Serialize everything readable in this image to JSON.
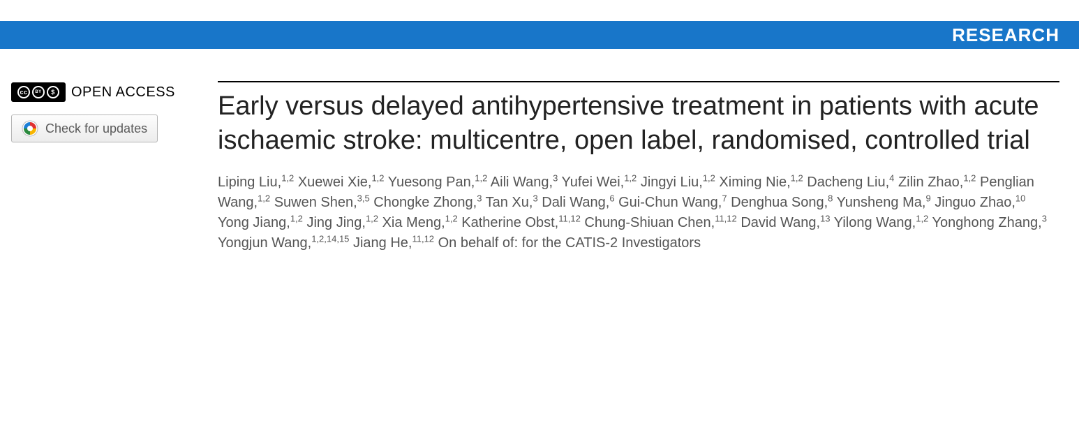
{
  "banner": {
    "label": "RESEARCH",
    "bg_color": "#1876c9",
    "text_color": "#ffffff"
  },
  "badges": {
    "open_access_label": "OPEN ACCESS",
    "check_updates_label": "Check for updates",
    "cc_glyph1": "cc",
    "cc_glyph2": "BY",
    "cc_glyph3": "$"
  },
  "article": {
    "title": "Early versus delayed antihypertensive treatment in patients with acute ischaemic stroke: multicentre, open label, randomised, controlled trial",
    "title_color": "#222222",
    "authors_color": "#555555",
    "authors": [
      {
        "name": "Liping Liu",
        "aff": "1,2"
      },
      {
        "name": "Xuewei Xie",
        "aff": "1,2"
      },
      {
        "name": "Yuesong Pan",
        "aff": "1,2"
      },
      {
        "name": "Aili Wang",
        "aff": "3"
      },
      {
        "name": "Yufei Wei",
        "aff": "1,2"
      },
      {
        "name": "Jingyi Liu",
        "aff": "1,2"
      },
      {
        "name": "Ximing Nie",
        "aff": "1,2"
      },
      {
        "name": "Dacheng Liu",
        "aff": "4"
      },
      {
        "name": "Zilin Zhao",
        "aff": "1,2"
      },
      {
        "name": "Penglian Wang",
        "aff": "1,2"
      },
      {
        "name": "Suwen Shen",
        "aff": "3,5"
      },
      {
        "name": "Chongke Zhong",
        "aff": "3"
      },
      {
        "name": "Tan Xu",
        "aff": "3"
      },
      {
        "name": "Dali Wang",
        "aff": "6"
      },
      {
        "name": "Gui-Chun Wang",
        "aff": "7"
      },
      {
        "name": "Denghua Song",
        "aff": "8"
      },
      {
        "name": "Yunsheng Ma",
        "aff": "9"
      },
      {
        "name": "Jinguo Zhao",
        "aff": "10"
      },
      {
        "name": "Yong Jiang",
        "aff": "1,2"
      },
      {
        "name": "Jing Jing",
        "aff": "1,2"
      },
      {
        "name": "Xia Meng",
        "aff": "1,2"
      },
      {
        "name": "Katherine Obst",
        "aff": "11,12"
      },
      {
        "name": "Chung-Shiuan Chen",
        "aff": "11,12"
      },
      {
        "name": "David Wang",
        "aff": "13"
      },
      {
        "name": "Yilong Wang",
        "aff": "1,2"
      },
      {
        "name": "Yonghong Zhang",
        "aff": "3"
      },
      {
        "name": "Yongjun Wang",
        "aff": "1,2,14,15"
      },
      {
        "name": "Jiang He",
        "aff": "11,12"
      }
    ],
    "group_author": "On behalf of: for the CATIS-2 Investigators"
  }
}
